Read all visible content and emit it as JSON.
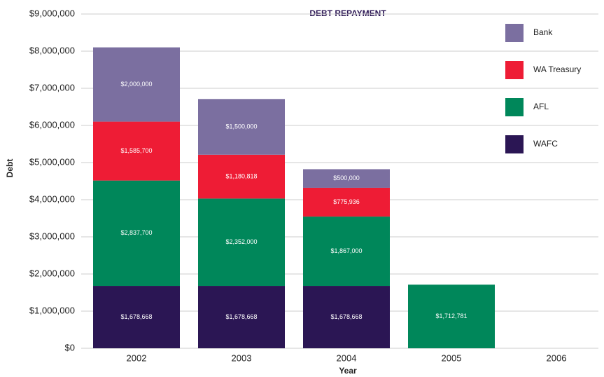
{
  "chart_data": {
    "type": "stacked_bar",
    "title": "DEBT REPAYMENT",
    "x_label": "Year",
    "y_label": "Debt",
    "categories": [
      "2002",
      "2003",
      "2004",
      "2005",
      "2006"
    ],
    "series": [
      {
        "name": "WAFC",
        "color": "#2b1654",
        "values": [
          1678668,
          1678668,
          1678668,
          null,
          null
        ],
        "value_labels": [
          "$1,678,668",
          "$1,678,668",
          "$1,678,668",
          null,
          null
        ]
      },
      {
        "name": "AFL",
        "color": "#00875a",
        "values": [
          2837700,
          2352000,
          1867000,
          1712781,
          null
        ],
        "value_labels": [
          "$2,837,700",
          "$2,352,000",
          "$1,867,000",
          "$1,712,781",
          null
        ]
      },
      {
        "name": "WA Treasury",
        "color": "#ee1c35",
        "values": [
          1585700,
          1180818,
          775936,
          null,
          null
        ],
        "value_labels": [
          "$1,585,700",
          "$1,180,818",
          "$775,936",
          null,
          null
        ]
      },
      {
        "name": "Bank",
        "color": "#7b6fa0",
        "values": [
          2000000,
          1500000,
          500000,
          null,
          null
        ],
        "value_labels": [
          "$2,000,000",
          "$1,500,000",
          "$500,000",
          null,
          null
        ]
      }
    ],
    "ylim": [
      0,
      9000000
    ],
    "yticks": [
      {
        "value": 0,
        "label": "$0"
      },
      {
        "value": 1000000,
        "label": "$1,000,000"
      },
      {
        "value": 2000000,
        "label": "$2,000,000"
      },
      {
        "value": 3000000,
        "label": "$3,000,000"
      },
      {
        "value": 4000000,
        "label": "$4,000,000"
      },
      {
        "value": 5000000,
        "label": "$5,000,000"
      },
      {
        "value": 6000000,
        "label": "$6,000,000"
      },
      {
        "value": 7000000,
        "label": "$7,000,000"
      },
      {
        "value": 8000000,
        "label": "$8,000,000"
      },
      {
        "value": 9000000,
        "label": "$9,000,000"
      }
    ],
    "grid": true,
    "legend": "upper right"
  }
}
